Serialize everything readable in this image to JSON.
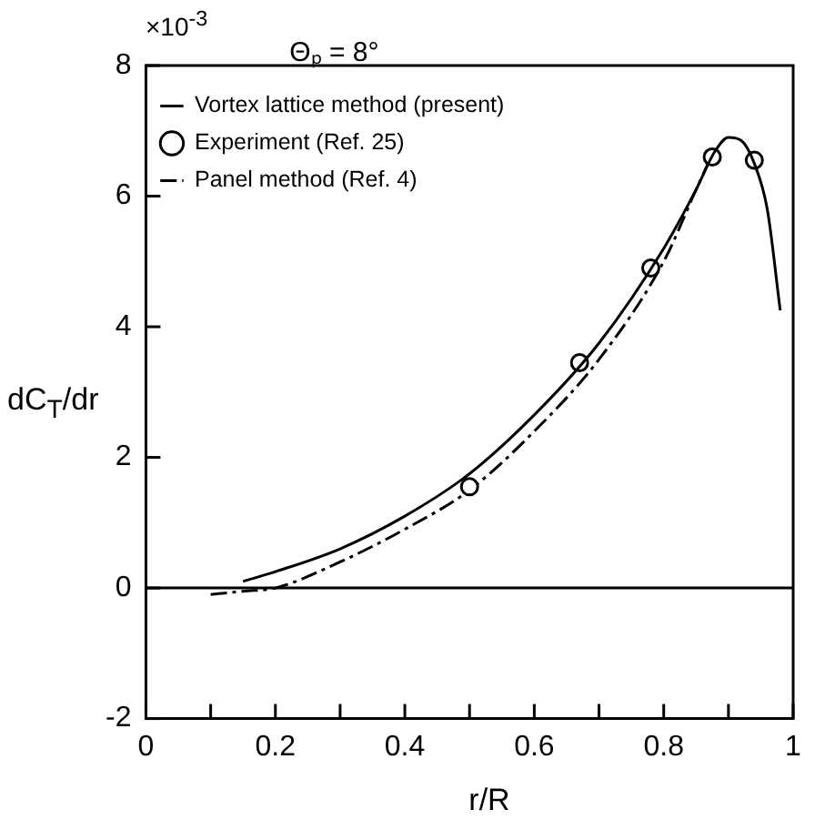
{
  "chart_data": {
    "type": "line",
    "xlabel": "r/R",
    "ylabel": "dC$_{T}$/dr",
    "legend_title": "Θₚ = 8°",
    "legend": "top left",
    "grid": false,
    "annotations": [
      "×10$^{-3}$"
    ],
    "xlim": [
      0,
      1
    ],
    "xticks": [
      0,
      {
        "value": 0.1,
        "label": null
      },
      0.2,
      {
        "value": 0.3,
        "label": null
      },
      0.4,
      {
        "value": 0.5,
        "label": null
      },
      0.6,
      {
        "value": 0.7,
        "label": null
      },
      0.8,
      {
        "value": 0.9,
        "label": null
      },
      1
    ],
    "ylim": [
      -2,
      8
    ],
    "yticks": [
      -2,
      0,
      2,
      4,
      6,
      8
    ],
    "ref_lines": [
      {
        "axis": "y",
        "value": 0,
        "color": "#000000"
      }
    ],
    "series": [
      {
        "name": "Vortex lattice method (present)",
        "line_style": "solid",
        "color": "#000000",
        "x": [
          0.15,
          0.2,
          0.3,
          0.4,
          0.5,
          0.6,
          0.7,
          0.8,
          0.85,
          0.88,
          0.9,
          0.92,
          0.94,
          0.96,
          0.98
        ],
        "values": [
          0.1,
          0.25,
          0.6,
          1.1,
          1.75,
          2.65,
          3.75,
          5.2,
          6.1,
          6.7,
          6.9,
          6.85,
          6.5,
          5.8,
          4.25
        ]
      },
      {
        "name": "Experiment (Ref. 25)",
        "type": "scatter",
        "marker": "circle",
        "color": "#000000",
        "x": [
          0.5,
          0.67,
          0.78,
          0.875,
          0.94
        ],
        "values": [
          1.55,
          3.45,
          4.9,
          6.6,
          6.55
        ]
      },
      {
        "name": "Panel method (Ref. 4)",
        "line_style": "dashed",
        "color": "#000000",
        "x": [
          0.1,
          0.15,
          0.2,
          0.3,
          0.4,
          0.5,
          0.6,
          0.7,
          0.8,
          0.85,
          0.88
        ],
        "values": [
          -0.1,
          -0.05,
          0.0,
          0.4,
          0.9,
          1.5,
          2.4,
          3.5,
          5.0,
          6.1,
          6.75
        ]
      }
    ]
  }
}
